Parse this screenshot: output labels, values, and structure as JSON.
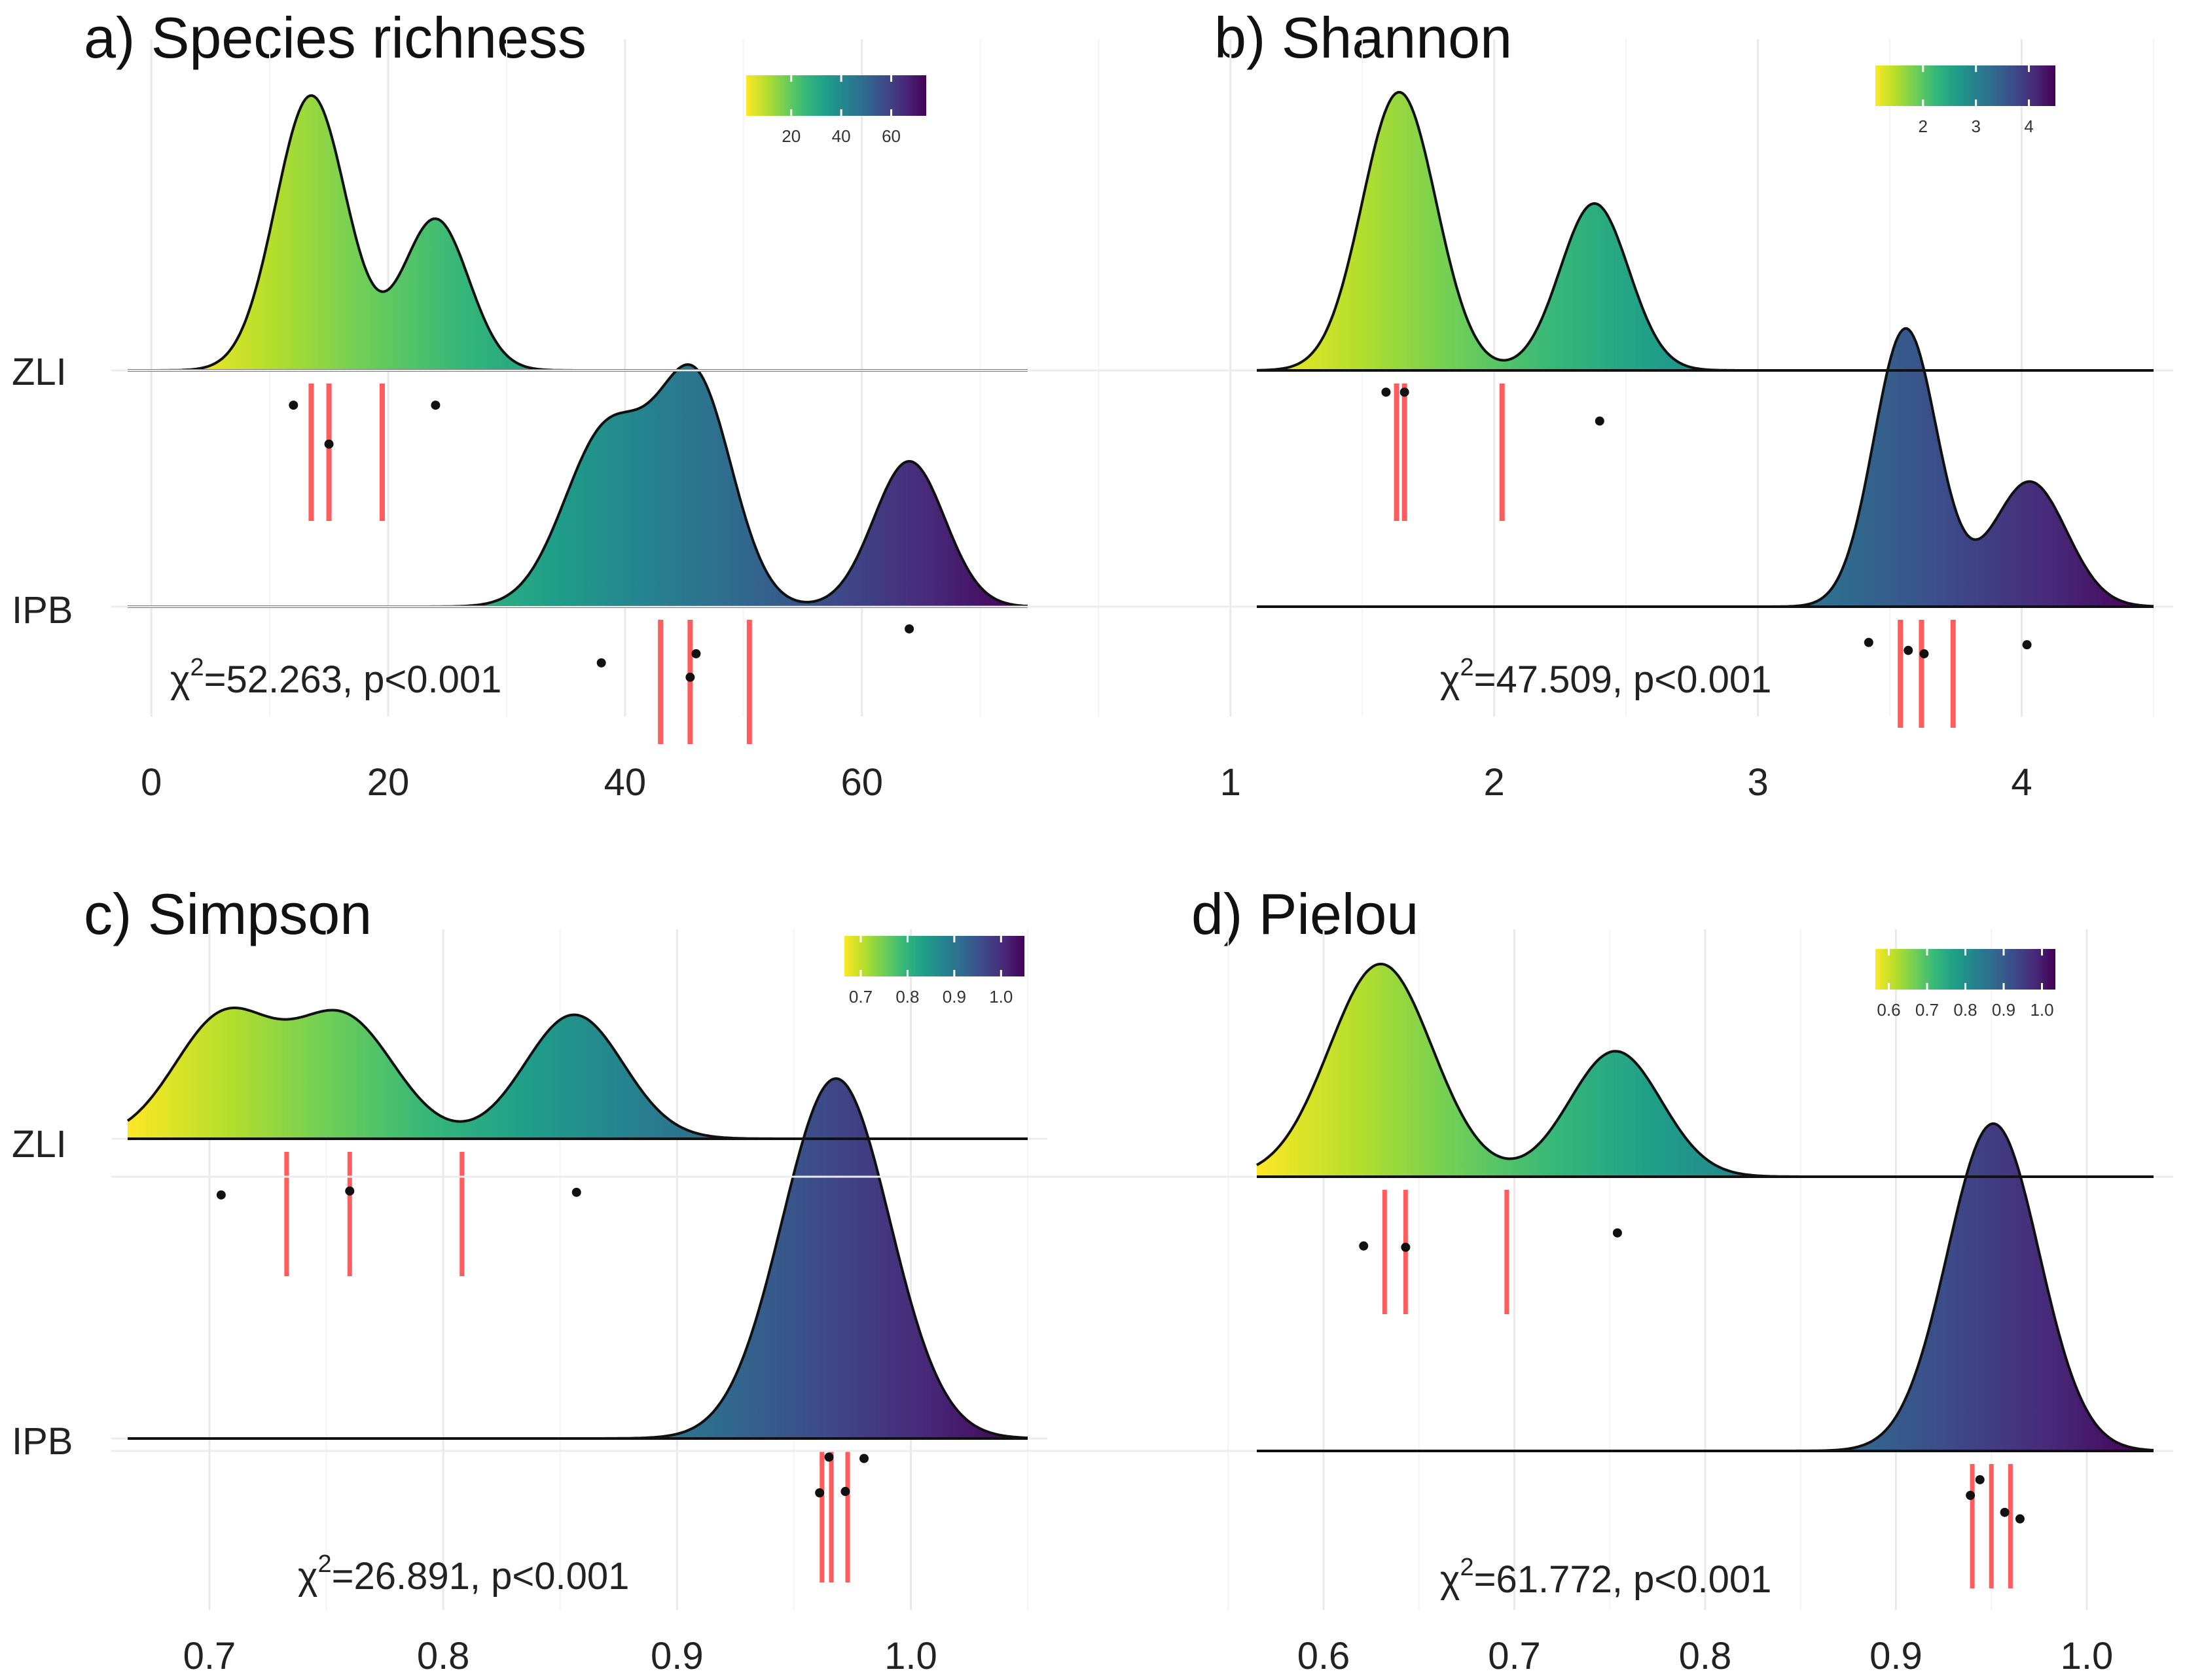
{
  "figure": {
    "panels": [
      {
        "id": "a",
        "title": "a) Species richness",
        "stat_text": "=52.263, p<0.001",
        "stat_symbol": "χ",
        "stat_sup": "2",
        "groups": [
          "ZLI",
          "IPB"
        ],
        "show_group_labels": true,
        "colorbar_ticks": [
          "20",
          "40",
          "60"
        ]
      },
      {
        "id": "b",
        "title": "b) Shannon",
        "stat_text": "=47.509, p<0.001",
        "stat_symbol": "χ",
        "stat_sup": "2",
        "groups": [
          "ZLI",
          "IPB"
        ],
        "show_group_labels": false,
        "colorbar_ticks": [
          "2",
          "3",
          "4"
        ]
      },
      {
        "id": "c",
        "title": "c) Simpson",
        "stat_text": "=26.891, p<0.001",
        "stat_symbol": "χ",
        "stat_sup": "2",
        "groups": [
          "ZLI",
          "IPB"
        ],
        "show_group_labels": true,
        "colorbar_ticks": [
          "0.7",
          "0.8",
          "0.9",
          "1.0"
        ]
      },
      {
        "id": "d",
        "title": "d) Pielou",
        "stat_text": "=61.772, p<0.001",
        "stat_symbol": "χ",
        "stat_sup": "2",
        "groups": [
          "ZLI",
          "IPB"
        ],
        "show_group_labels": false,
        "colorbar_ticks": [
          "0.6",
          "0.7",
          "0.8",
          "0.9",
          "1.0"
        ]
      }
    ]
  },
  "chart_data": [
    {
      "id": "a",
      "type": "ridgeline",
      "title": "a) Species richness",
      "xlim": [
        -2,
        74
      ],
      "xticks": [
        0,
        20,
        40,
        60
      ],
      "xtick_labels": [
        "0",
        "20",
        "40",
        "60"
      ],
      "colorbar": {
        "range": [
          2,
          74
        ],
        "ticks": [
          20,
          40,
          60
        ]
      },
      "series": [
        {
          "name": "ZLI",
          "density_peaks": [
            [
              13.5,
              3.0,
              1.0
            ],
            [
              24,
              2.8,
              0.55
            ]
          ],
          "quantiles": [
            13.5,
            15,
            19.5
          ],
          "points": [
            [
              12,
              0.15
            ],
            [
              24,
              0.15
            ],
            [
              15,
              0.42
            ]
          ]
        },
        {
          "name": "IPB",
          "density_peaks": [
            [
              38.5,
              3.6,
              0.58
            ],
            [
              46,
              3.1,
              0.72
            ],
            [
              64,
              3.0,
              0.48
            ]
          ],
          "quantiles": [
            43,
            45.5,
            50.5
          ],
          "points": [
            [
              64,
              0.07
            ],
            [
              46,
              0.26
            ],
            [
              38,
              0.33
            ],
            [
              45.5,
              0.44
            ]
          ]
        }
      ]
    },
    {
      "id": "b",
      "type": "ridgeline",
      "title": "b) Shannon",
      "xlim": [
        1.1,
        4.5
      ],
      "xticks": [
        1,
        2,
        3,
        4
      ],
      "xtick_labels": [
        "1",
        "2",
        "3",
        "4"
      ],
      "colorbar": {
        "range": [
          1.1,
          4.5
        ],
        "ticks": [
          2,
          3,
          4
        ]
      },
      "series": [
        {
          "name": "ZLI",
          "density_peaks": [
            [
              1.64,
              0.14,
              1.0
            ],
            [
              2.38,
              0.13,
              0.6
            ]
          ],
          "quantiles": [
            1.63,
            1.66,
            2.03
          ],
          "points": [
            [
              1.59,
              0.06
            ],
            [
              1.66,
              0.06
            ],
            [
              2.4,
              0.26
            ]
          ]
        },
        {
          "name": "IPB",
          "density_peaks": [
            [
              3.56,
              0.12,
              1.0
            ],
            [
              4.03,
              0.14,
              0.45
            ]
          ],
          "quantiles": [
            3.54,
            3.62,
            3.74
          ],
          "points": [
            [
              3.42,
              0.2
            ],
            [
              4.02,
              0.22
            ],
            [
              3.57,
              0.27
            ],
            [
              3.63,
              0.3
            ]
          ]
        }
      ]
    },
    {
      "id": "c",
      "type": "ridgeline",
      "title": "c) Simpson",
      "xlim": [
        0.665,
        1.05
      ],
      "xticks": [
        0.7,
        0.8,
        0.9,
        1.0
      ],
      "xtick_labels": [
        "0.7",
        "0.8",
        "0.9",
        "1.0"
      ],
      "colorbar": {
        "range": [
          0.665,
          1.05
        ],
        "ticks": [
          0.7,
          0.8,
          0.9,
          1.0
        ]
      },
      "series": [
        {
          "name": "ZLI",
          "density_peaks": [
            [
              0.706,
              0.021,
              0.74
            ],
            [
              0.757,
              0.022,
              0.74
            ],
            [
              0.856,
              0.021,
              0.76
            ]
          ],
          "quantiles": [
            0.733,
            0.76,
            0.808
          ],
          "points": [
            [
              0.705,
              0.33
            ],
            [
              0.76,
              0.3
            ],
            [
              0.857,
              0.31
            ]
          ]
        },
        {
          "name": "IPB",
          "density_peaks": [
            [
              0.968,
              0.023,
              1.0
            ]
          ],
          "quantiles": [
            0.962,
            0.966,
            0.973
          ],
          "points": [
            [
              0.965,
              0.04
            ],
            [
              0.98,
              0.05
            ],
            [
              0.961,
              0.3
            ],
            [
              0.972,
              0.29
            ]
          ]
        }
      ]
    },
    {
      "id": "d",
      "type": "ridgeline",
      "title": "d) Pielou",
      "xlim": [
        0.565,
        1.035
      ],
      "xticks": [
        0.6,
        0.7,
        0.8,
        0.9,
        1.0
      ],
      "xtick_labels": [
        "0.6",
        "0.7",
        "0.8",
        "0.9",
        "1.0"
      ],
      "colorbar": {
        "range": [
          0.565,
          1.035
        ],
        "ticks": [
          0.6,
          0.7,
          0.8,
          0.9,
          1.0
        ]
      },
      "series": [
        {
          "name": "ZLI",
          "density_peaks": [
            [
              0.63,
              0.027,
              1.0
            ],
            [
              0.753,
              0.024,
              0.59
            ]
          ],
          "quantiles": [
            0.632,
            0.643,
            0.696
          ],
          "points": [
            [
              0.621,
              0.43
            ],
            [
              0.643,
              0.44
            ],
            [
              0.754,
              0.33
            ]
          ]
        },
        {
          "name": "IPB",
          "density_peaks": [
            [
              0.951,
              0.024,
              1.0
            ]
          ],
          "quantiles": [
            0.94,
            0.95,
            0.96
          ],
          "points": [
            [
              0.944,
              0.12
            ],
            [
              0.939,
              0.24
            ],
            [
              0.957,
              0.37
            ],
            [
              0.965,
              0.42
            ]
          ]
        }
      ]
    }
  ]
}
